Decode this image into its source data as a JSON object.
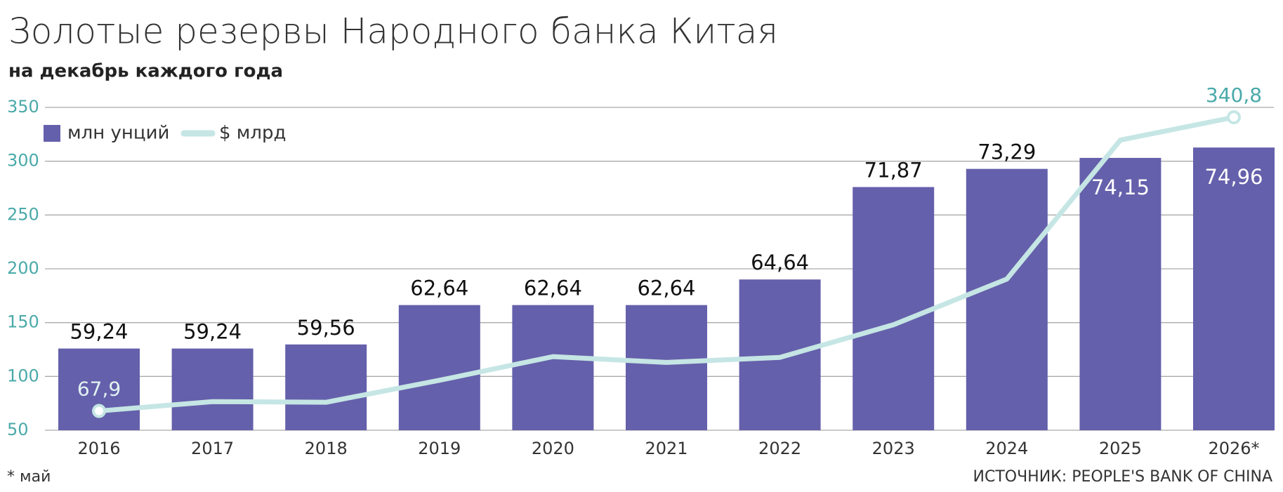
{
  "chart_data": {
    "type": "combo",
    "title": "Золотые резервы Народного банка Китая",
    "subtitle": "на декабрь каждого года",
    "categories": [
      "2016",
      "2017",
      "2018",
      "2019",
      "2020",
      "2021",
      "2022",
      "2023",
      "2024",
      "2025",
      "2026*"
    ],
    "series": [
      {
        "name": "млн унций",
        "type": "bar",
        "axis": "y2",
        "color": "#6560ab",
        "values": [
          59.24,
          59.24,
          59.56,
          62.64,
          62.64,
          62.64,
          64.64,
          71.87,
          73.29,
          74.15,
          74.96
        ],
        "value_labels": [
          "59,24",
          "59,24",
          "59,56",
          "62,64",
          "62,64",
          "62,64",
          "64,64",
          "71,87",
          "73,29",
          "74,15",
          "74,96"
        ]
      },
      {
        "name": "$ млрд",
        "type": "line",
        "color": "#c5e6e4",
        "values": [
          67.9,
          76.6,
          76,
          96.4,
          118.4,
          113,
          117.7,
          148,
          190.5,
          319.6,
          340.8
        ],
        "value_labels": [
          "67,9",
          null,
          null,
          null,
          null,
          null,
          null,
          null,
          null,
          null,
          "340,8"
        ]
      }
    ],
    "ylim": [
      50,
      350
    ],
    "yticks": [
      50,
      100,
      150,
      200,
      250,
      300,
      350
    ],
    "y2lim": [
      52.85,
      78.1
    ],
    "grid": true,
    "legend": "top-left",
    "footnote": "* май",
    "source": "ИСТОЧНИК: PEOPLE'S BANK OF CHINA"
  }
}
